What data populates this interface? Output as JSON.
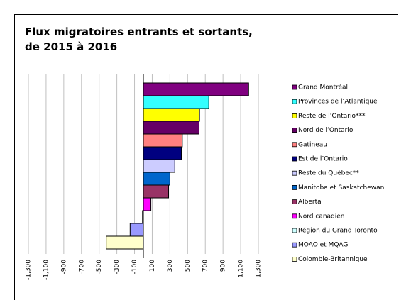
{
  "chart_data": {
    "type": "hbar",
    "title": [
      "Flux migratoires entrants et sortants,",
      "de 2015 à 2016"
    ],
    "categories": [
      "Grand Montréal",
      "Provinces de l’Atlantique",
      "Reste de l’Ontario***",
      "Nord de l’Ontario",
      "Gatineau",
      "Est de l’Ontario",
      "Reste du Québec**",
      "Manitoba et Saskatchewan",
      "Alberta",
      "Nord canadien",
      "Région du Grand Toronto",
      "MOAO et MQAG",
      "Colombie-Britannique"
    ],
    "values": [
      1190,
      740,
      635,
      630,
      440,
      430,
      355,
      300,
      285,
      85,
      -10,
      -150,
      -420
    ],
    "colors": [
      "#800080",
      "#33ffff",
      "#ffff00",
      "#660066",
      "#ff8080",
      "#000080",
      "#ccccff",
      "#0066cc",
      "#993366",
      "#ff00ff",
      "#ccffff",
      "#9999ff",
      "#ffffcc"
    ],
    "xlim": [
      -1300,
      1300
    ],
    "xticks": [
      {
        "value": -1300,
        "label": "-1,300"
      },
      {
        "value": -1100,
        "label": "-1,100"
      },
      -900,
      -700,
      -500,
      -300,
      -100,
      100,
      300,
      500,
      700,
      900,
      {
        "value": 1100,
        "label": "1,100"
      },
      {
        "value": 1300,
        "label": "1,300"
      }
    ],
    "grid": true
  }
}
